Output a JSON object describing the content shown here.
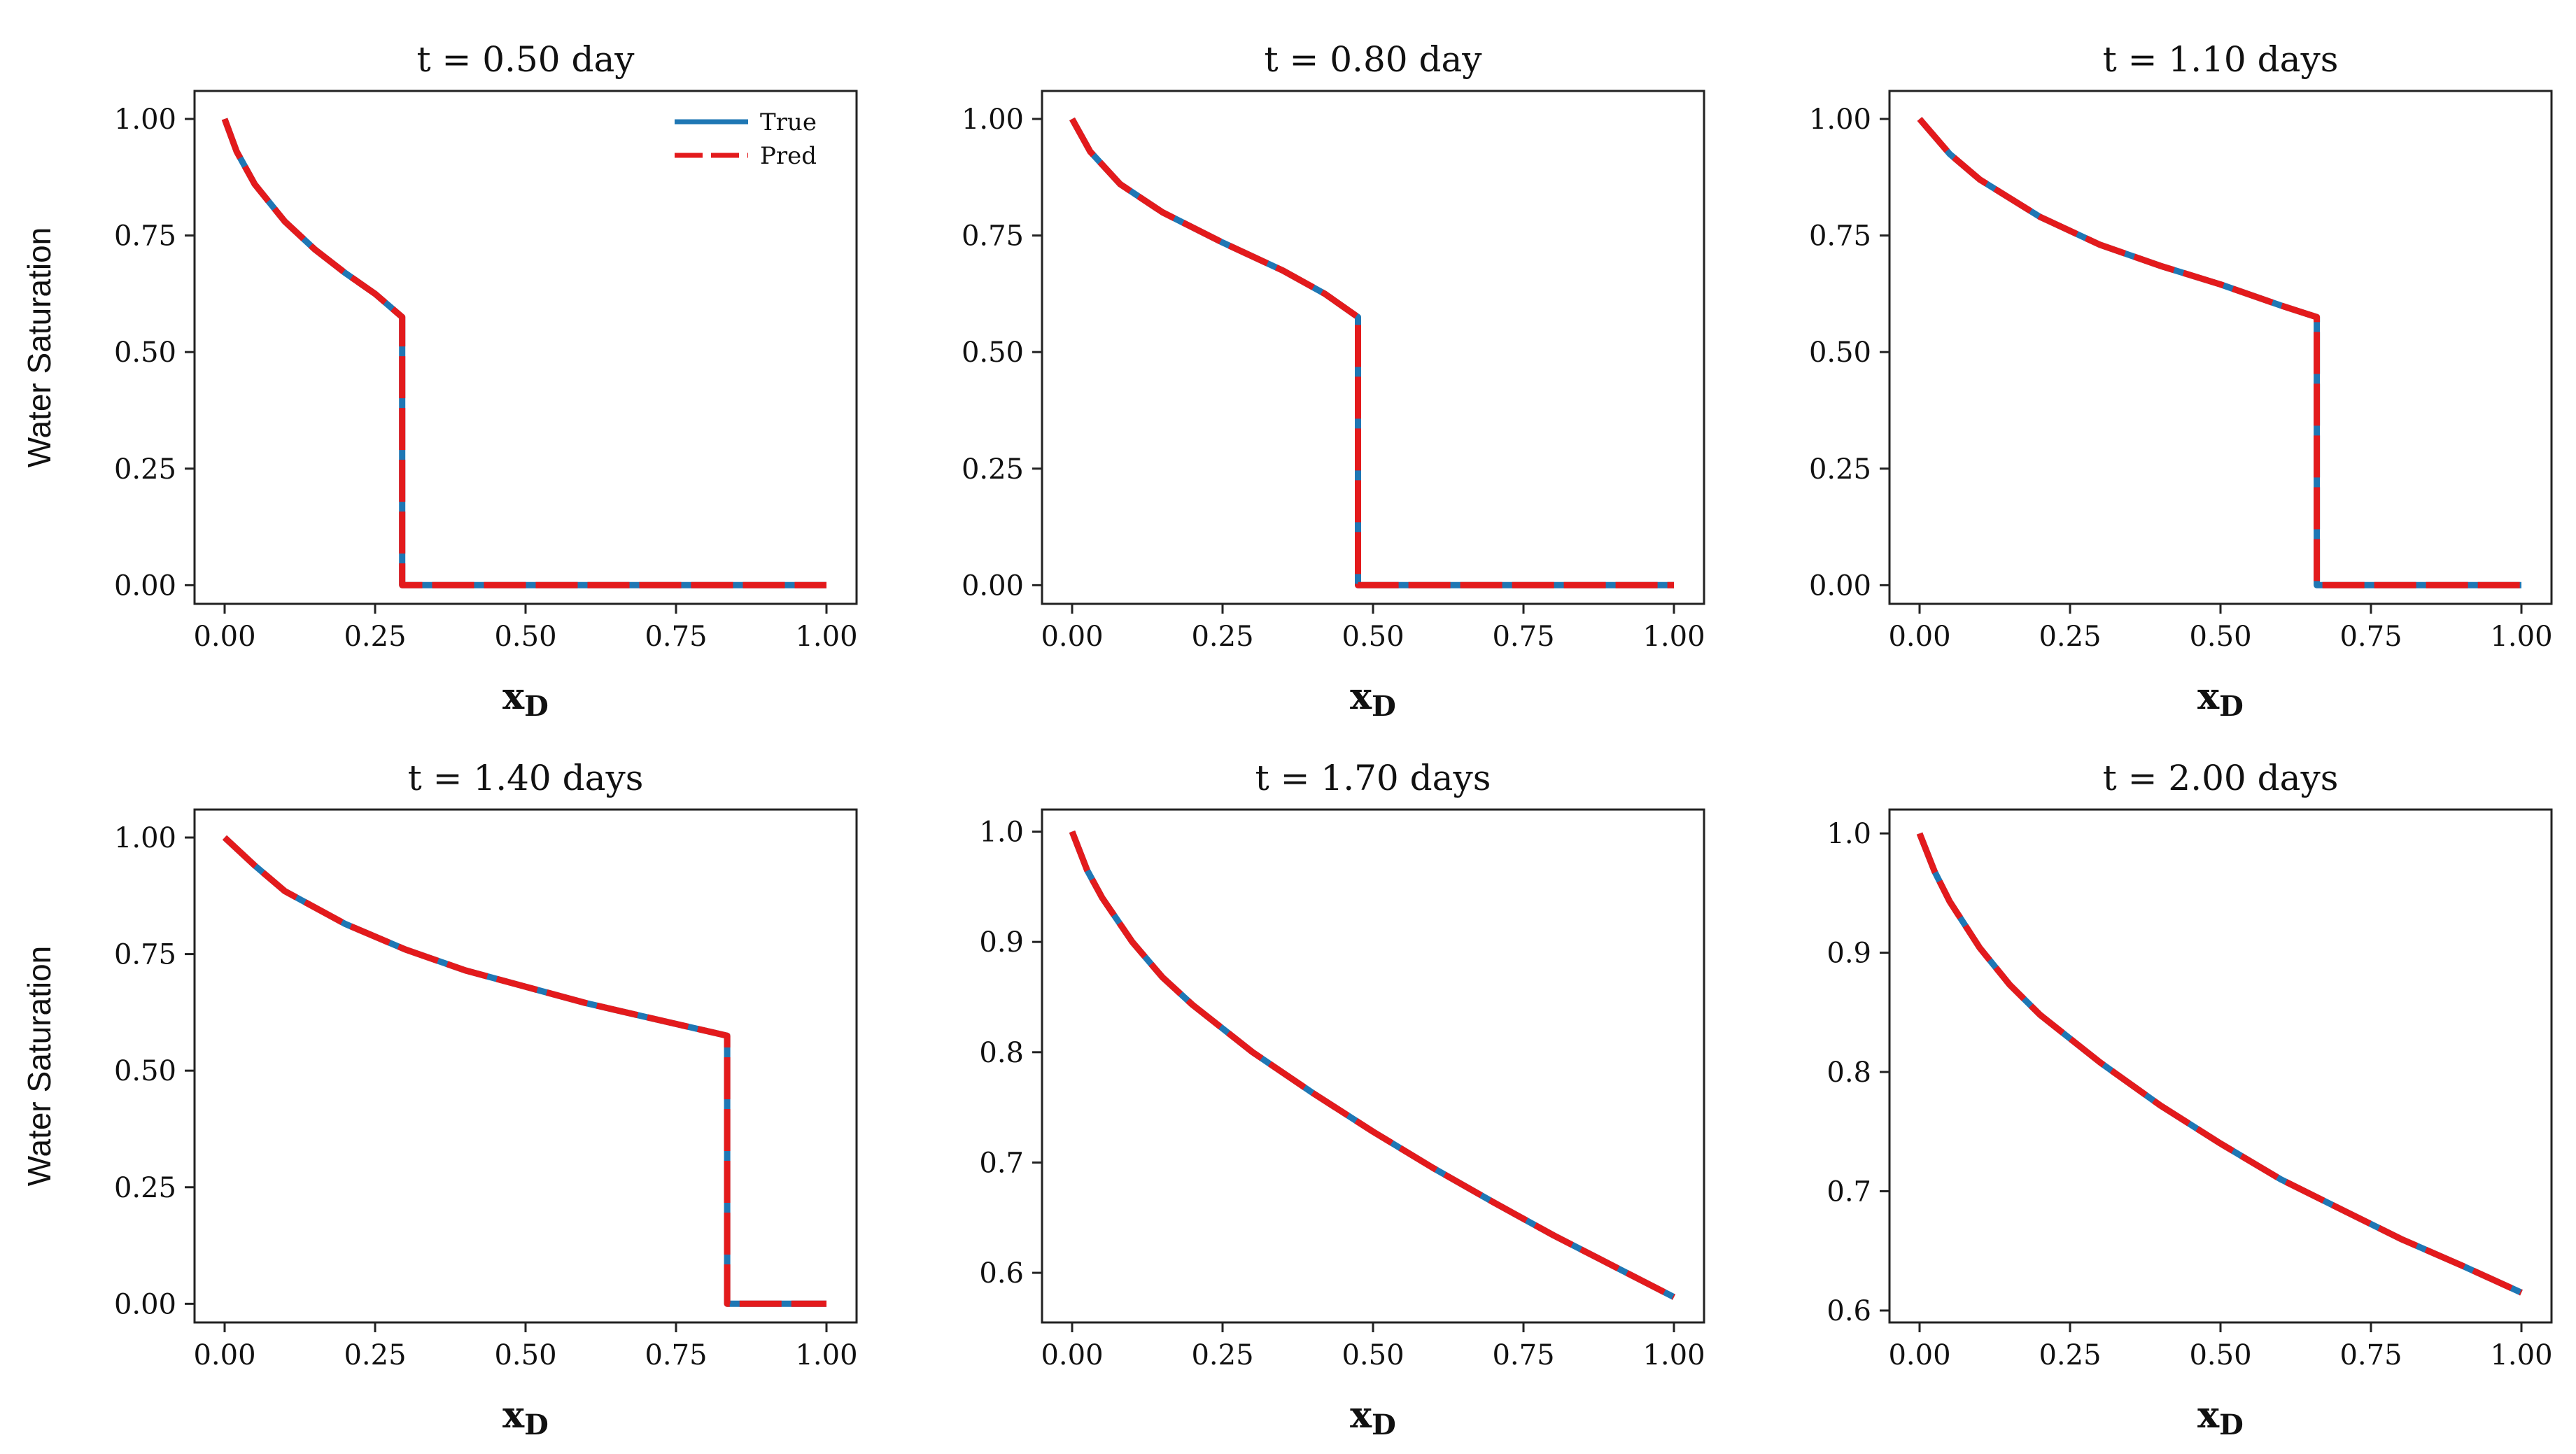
{
  "figure": {
    "colors": {
      "true_line": "#1f77b4",
      "pred_line": "#e31a1c",
      "axes": "#222222"
    },
    "legend": {
      "location": "top-right",
      "entries": [
        "True",
        "Pred"
      ]
    }
  },
  "chart_data": [
    {
      "type": "line",
      "title": "t = 0.50 day",
      "xlabel": {
        "main": "x",
        "sub": "D"
      },
      "ylabel": "Water Saturation",
      "xlim": [
        -0.05,
        1.05
      ],
      "ylim": [
        -0.04,
        1.06
      ],
      "xticks": [
        0.0,
        0.25,
        0.5,
        0.75,
        1.0
      ],
      "xtick_labels": [
        "0.00",
        "0.25",
        "0.50",
        "0.75",
        "1.00"
      ],
      "yticks": [
        0.0,
        0.25,
        0.5,
        0.75,
        1.0
      ],
      "ytick_labels": [
        "0.00",
        "0.25",
        "0.50",
        "0.75",
        "1.00"
      ],
      "front": 0.295,
      "front_sat": 0.575,
      "x": [
        0.0,
        0.02,
        0.05,
        0.1,
        0.15,
        0.2,
        0.25,
        0.295,
        0.295,
        0.5,
        0.75,
        1.0
      ],
      "series": [
        {
          "name": "True",
          "values": [
            1.0,
            0.93,
            0.86,
            0.78,
            0.72,
            0.67,
            0.625,
            0.575,
            0.0,
            0.0,
            0.0,
            0.0
          ]
        },
        {
          "name": "Pred",
          "values": [
            1.0,
            0.93,
            0.86,
            0.78,
            0.72,
            0.67,
            0.625,
            0.575,
            0.0,
            0.0,
            0.0,
            0.0
          ]
        }
      ],
      "legend": true
    },
    {
      "type": "line",
      "title": "t = 0.80 day",
      "xlabel": {
        "main": "x",
        "sub": "D"
      },
      "ylabel": "",
      "xlim": [
        -0.05,
        1.05
      ],
      "ylim": [
        -0.04,
        1.06
      ],
      "xticks": [
        0.0,
        0.25,
        0.5,
        0.75,
        1.0
      ],
      "xtick_labels": [
        "0.00",
        "0.25",
        "0.50",
        "0.75",
        "1.00"
      ],
      "yticks": [
        0.0,
        0.25,
        0.5,
        0.75,
        1.0
      ],
      "ytick_labels": [
        "0.00",
        "0.25",
        "0.50",
        "0.75",
        "1.00"
      ],
      "x": [
        0.0,
        0.03,
        0.08,
        0.15,
        0.25,
        0.35,
        0.42,
        0.475,
        0.475,
        0.75,
        1.0
      ],
      "series": [
        {
          "name": "True",
          "values": [
            1.0,
            0.93,
            0.86,
            0.8,
            0.735,
            0.675,
            0.625,
            0.575,
            0.0,
            0.0,
            0.0
          ]
        },
        {
          "name": "Pred",
          "values": [
            1.0,
            0.93,
            0.86,
            0.8,
            0.735,
            0.675,
            0.625,
            0.575,
            0.0,
            0.0,
            0.0
          ]
        }
      ],
      "legend": false
    },
    {
      "type": "line",
      "title": "t = 1.10 days",
      "xlabel": {
        "main": "x",
        "sub": "D"
      },
      "ylabel": "",
      "xlim": [
        -0.05,
        1.05
      ],
      "ylim": [
        -0.04,
        1.06
      ],
      "xticks": [
        0.0,
        0.25,
        0.5,
        0.75,
        1.0
      ],
      "xtick_labels": [
        "0.00",
        "0.25",
        "0.50",
        "0.75",
        "1.00"
      ],
      "yticks": [
        0.0,
        0.25,
        0.5,
        0.75,
        1.0
      ],
      "ytick_labels": [
        "0.00",
        "0.25",
        "0.50",
        "0.75",
        "1.00"
      ],
      "x": [
        0.0,
        0.05,
        0.1,
        0.2,
        0.3,
        0.4,
        0.5,
        0.6,
        0.66,
        0.66,
        0.8,
        1.0
      ],
      "series": [
        {
          "name": "True",
          "values": [
            1.0,
            0.925,
            0.87,
            0.79,
            0.73,
            0.685,
            0.645,
            0.6,
            0.575,
            0.0,
            0.0,
            0.0
          ]
        },
        {
          "name": "Pred",
          "values": [
            1.0,
            0.925,
            0.87,
            0.79,
            0.73,
            0.685,
            0.645,
            0.6,
            0.575,
            0.0,
            0.0,
            0.0
          ]
        }
      ],
      "legend": false
    },
    {
      "type": "line",
      "title": "t = 1.40 days",
      "xlabel": {
        "main": "x",
        "sub": "D"
      },
      "ylabel": "Water Saturation",
      "xlim": [
        -0.05,
        1.05
      ],
      "ylim": [
        -0.04,
        1.06
      ],
      "xticks": [
        0.0,
        0.25,
        0.5,
        0.75,
        1.0
      ],
      "xtick_labels": [
        "0.00",
        "0.25",
        "0.50",
        "0.75",
        "1.00"
      ],
      "yticks": [
        0.0,
        0.25,
        0.5,
        0.75,
        1.0
      ],
      "ytick_labels": [
        "0.00",
        "0.25",
        "0.50",
        "0.75",
        "1.00"
      ],
      "x": [
        0.0,
        0.05,
        0.1,
        0.2,
        0.3,
        0.4,
        0.5,
        0.6,
        0.7,
        0.835,
        0.835,
        0.9,
        1.0
      ],
      "series": [
        {
          "name": "True",
          "values": [
            1.0,
            0.94,
            0.885,
            0.815,
            0.76,
            0.715,
            0.68,
            0.645,
            0.615,
            0.575,
            0.0,
            0.0,
            0.0
          ]
        },
        {
          "name": "Pred",
          "values": [
            1.0,
            0.94,
            0.885,
            0.815,
            0.76,
            0.715,
            0.68,
            0.645,
            0.615,
            0.575,
            0.0,
            0.0,
            0.0
          ]
        }
      ],
      "legend": false
    },
    {
      "type": "line",
      "title": "t = 1.70 days",
      "xlabel": {
        "main": "x",
        "sub": "D"
      },
      "ylabel": "",
      "xlim": [
        -0.05,
        1.05
      ],
      "ylim": [
        0.555,
        1.02
      ],
      "xticks": [
        0.0,
        0.25,
        0.5,
        0.75,
        1.0
      ],
      "xtick_labels": [
        "0.00",
        "0.25",
        "0.50",
        "0.75",
        "1.00"
      ],
      "yticks": [
        0.6,
        0.7,
        0.8,
        0.9,
        1.0
      ],
      "ytick_labels": [
        "0.6",
        "0.7",
        "0.8",
        "0.9",
        "1.0"
      ],
      "x": [
        0.0,
        0.025,
        0.05,
        0.1,
        0.15,
        0.2,
        0.3,
        0.4,
        0.5,
        0.6,
        0.7,
        0.8,
        0.9,
        1.0
      ],
      "series": [
        {
          "name": "True",
          "values": [
            1.0,
            0.965,
            0.94,
            0.9,
            0.868,
            0.843,
            0.8,
            0.763,
            0.728,
            0.695,
            0.664,
            0.634,
            0.606,
            0.578
          ]
        },
        {
          "name": "Pred",
          "values": [
            1.0,
            0.965,
            0.94,
            0.9,
            0.868,
            0.843,
            0.8,
            0.763,
            0.728,
            0.695,
            0.664,
            0.634,
            0.606,
            0.578
          ]
        }
      ],
      "legend": false
    },
    {
      "type": "line",
      "title": "t = 2.00 days",
      "xlabel": {
        "main": "x",
        "sub": "D"
      },
      "ylabel": "",
      "xlim": [
        -0.05,
        1.05
      ],
      "ylim": [
        0.59,
        1.02
      ],
      "xticks": [
        0.0,
        0.25,
        0.5,
        0.75,
        1.0
      ],
      "xtick_labels": [
        "0.00",
        "0.25",
        "0.50",
        "0.75",
        "1.00"
      ],
      "yticks": [
        0.6,
        0.7,
        0.8,
        0.9,
        1.0
      ],
      "ytick_labels": [
        "0.6",
        "0.7",
        "0.8",
        "0.9",
        "1.0"
      ],
      "x": [
        0.0,
        0.025,
        0.05,
        0.1,
        0.15,
        0.2,
        0.3,
        0.4,
        0.5,
        0.6,
        0.7,
        0.8,
        0.9,
        1.0
      ],
      "series": [
        {
          "name": "True",
          "values": [
            1.0,
            0.968,
            0.943,
            0.904,
            0.873,
            0.848,
            0.808,
            0.772,
            0.74,
            0.71,
            0.685,
            0.66,
            0.638,
            0.615
          ]
        },
        {
          "name": "Pred",
          "values": [
            1.0,
            0.968,
            0.943,
            0.904,
            0.873,
            0.848,
            0.808,
            0.772,
            0.74,
            0.71,
            0.685,
            0.66,
            0.638,
            0.615
          ]
        }
      ],
      "legend": false
    }
  ]
}
